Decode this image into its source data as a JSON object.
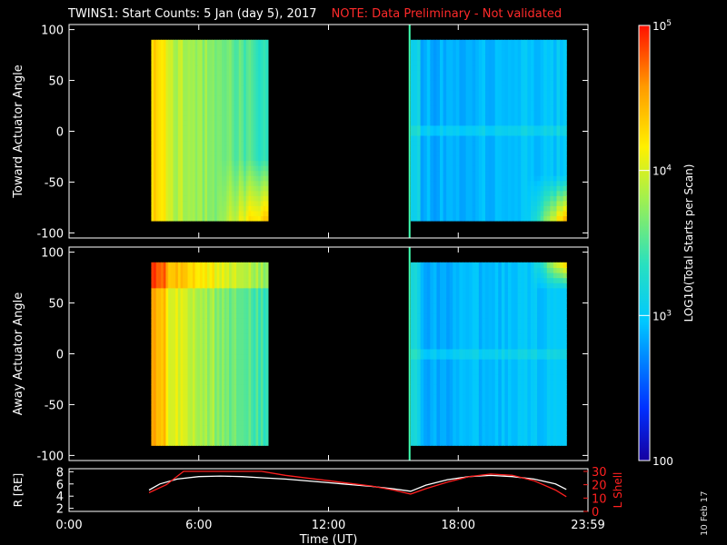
{
  "title": {
    "main": "TWINS1: Start Counts:  5 Jan (day   5), 2017",
    "note": "NOTE: Data Preliminary - Not validated"
  },
  "side_date": "10 Feb 17",
  "colors": {
    "background": "#000000",
    "axes": "#ffffff",
    "note_red": "#ff2a2a",
    "marker_line": "#40ffb0",
    "orbit_r": "#ffffff",
    "orbit_l": "#ff2020"
  },
  "chart_data": [
    {
      "type": "heatmap",
      "title": "TWINS1: Start Counts:  5 Jan (day   5), 2017",
      "ylabel": "Toward Actuator Angle",
      "ylim": [
        -105,
        105
      ],
      "yticks": [
        100,
        50,
        0,
        -50,
        -100
      ],
      "ytick_labels": [
        "100",
        "50",
        "0",
        "-50",
        "-100"
      ],
      "xlim_hours": [
        0,
        24
      ],
      "data_segments_hours": [
        [
          3.8,
          9.2
        ],
        [
          15.8,
          23.0
        ]
      ],
      "angle_range": [
        -88,
        90
      ],
      "marker_time_hours": 15.75
    },
    {
      "type": "heatmap",
      "ylabel": "Away Actuator Angle",
      "ylim": [
        -105,
        105
      ],
      "yticks": [
        100,
        50,
        0,
        -50,
        -100
      ],
      "ytick_labels": [
        "100",
        "50",
        "0",
        "-50",
        "-100"
      ],
      "xlim_hours": [
        0,
        24
      ],
      "data_segments_hours": [
        [
          3.8,
          9.2
        ],
        [
          15.8,
          23.0
        ]
      ],
      "angle_range": [
        -90,
        90
      ],
      "marker_time_hours": 15.75
    },
    {
      "type": "line",
      "xlabel": "Time (UT)",
      "ylabel_left": "R [RE]",
      "ylabel_right": "L Shell",
      "xticks": [
        "0:00",
        "6:00",
        "12:00",
        "18:00",
        "23:59"
      ],
      "yticks_left": [
        "8",
        "6",
        "4",
        "2"
      ],
      "ylim_left": [
        1.5,
        8.5
      ],
      "yticks_right": [
        "30",
        "20",
        "10",
        "0"
      ],
      "ylim_right": [
        0,
        32
      ],
      "series": [
        {
          "name": "R [RE]",
          "x": [
            3.7,
            4.2,
            5.0,
            6.0,
            7.0,
            8.0,
            9.0,
            10.0,
            11.0,
            12.0,
            13.0,
            14.0,
            15.0,
            15.8,
            16.5,
            17.5,
            18.5,
            19.5,
            20.5,
            21.5,
            22.5,
            23.0
          ],
          "y": [
            5.0,
            6.0,
            6.8,
            7.2,
            7.3,
            7.2,
            7.0,
            6.8,
            6.5,
            6.2,
            5.9,
            5.6,
            5.2,
            4.8,
            5.8,
            6.7,
            7.2,
            7.4,
            7.2,
            6.8,
            6.0,
            5.1
          ]
        },
        {
          "name": "L Shell",
          "x": [
            3.7,
            4.5,
            5.3,
            8.9,
            10.0,
            11.0,
            12.0,
            13.0,
            14.0,
            15.0,
            15.8,
            16.5,
            17.5,
            18.5,
            19.5,
            20.5,
            21.5,
            22.5,
            23.0
          ],
          "y": [
            14,
            20,
            30,
            30,
            27,
            25,
            23,
            21,
            19,
            16,
            13,
            17,
            22,
            26,
            28,
            27,
            23,
            16,
            11
          ]
        }
      ]
    }
  ],
  "colorbar": {
    "label": "LOG10(Total Starts per Scan)",
    "ticks": [
      {
        "value": 100000,
        "label": "10^5"
      },
      {
        "value": 10000,
        "label": "10^4"
      },
      {
        "value": 1000,
        "label": "10^3"
      },
      {
        "value": 100,
        "label": "100"
      }
    ],
    "range": [
      100,
      100000
    ],
    "colormap": "rainbow"
  }
}
